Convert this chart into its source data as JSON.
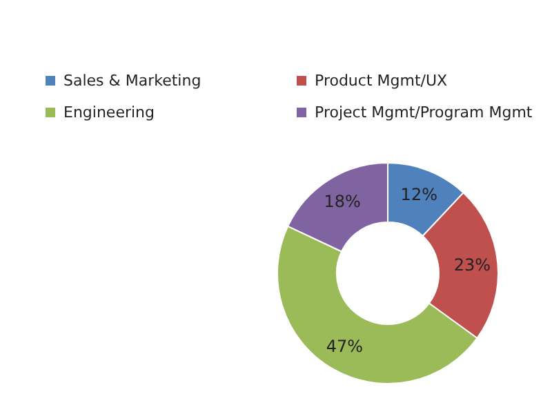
{
  "chart_data": {
    "type": "donut",
    "categories": [
      "Sales & Marketing",
      "Product Mgmt/UX",
      "Engineering",
      "Project Mgmt/Program Mgmt"
    ],
    "values": [
      12,
      23,
      47,
      18
    ],
    "colors": [
      "#4f81bd",
      "#c0504d",
      "#9bbb59",
      "#8064a2"
    ],
    "value_labels": [
      "12%",
      "23%",
      "47%",
      "18%"
    ],
    "legend": "top"
  }
}
